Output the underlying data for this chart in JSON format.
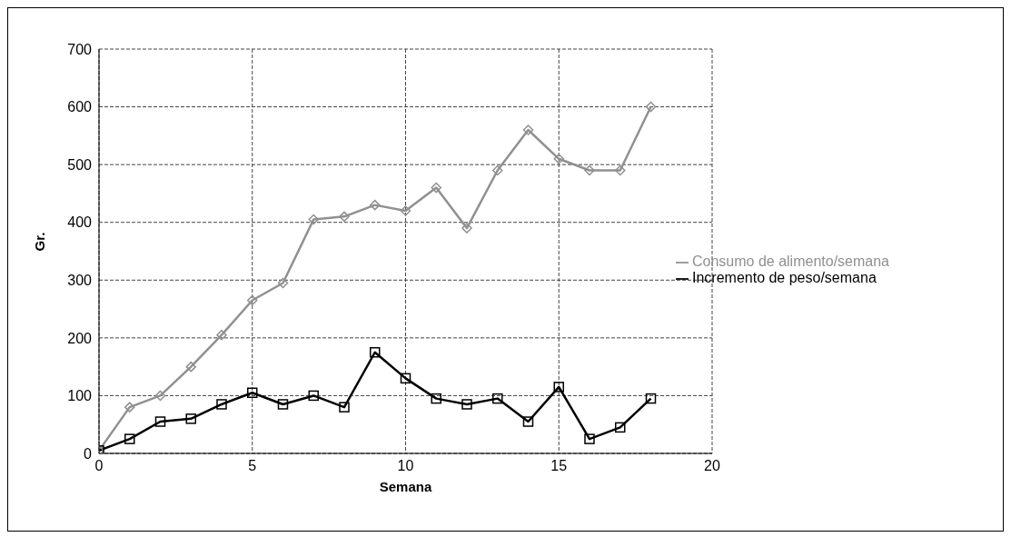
{
  "chart_data": {
    "type": "line",
    "xlabel": "Semana",
    "ylabel": "Gr.",
    "x": [
      0,
      1,
      2,
      3,
      4,
      5,
      6,
      7,
      8,
      9,
      10,
      11,
      12,
      13,
      14,
      15,
      16,
      17,
      18
    ],
    "series": [
      {
        "name": "Consumo de alimento/semana",
        "color": "#909090",
        "marker": "diamond",
        "values": [
          5,
          80,
          100,
          150,
          205,
          265,
          295,
          405,
          410,
          430,
          420,
          460,
          390,
          490,
          560,
          510,
          490,
          490,
          600
        ]
      },
      {
        "name": "Incremento de peso/semana",
        "color": "#000000",
        "marker": "square",
        "values": [
          5,
          25,
          55,
          60,
          85,
          105,
          85,
          100,
          80,
          175,
          130,
          95,
          85,
          95,
          55,
          115,
          25,
          45,
          95
        ]
      }
    ],
    "xlim": [
      0,
      20
    ],
    "xticks": [
      0,
      5,
      10,
      15,
      20
    ],
    "ylim": [
      0,
      700
    ],
    "yticks": [
      0,
      100,
      200,
      300,
      400,
      500,
      600,
      700
    ],
    "grid": true,
    "legend": "right",
    "line_style": "solid"
  }
}
